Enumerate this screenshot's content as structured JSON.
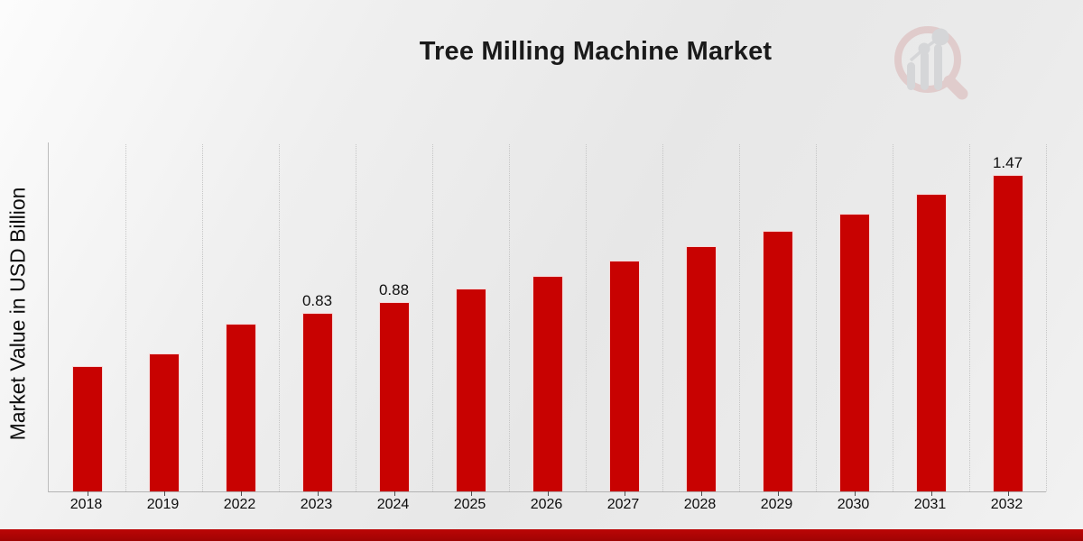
{
  "chart_data": {
    "type": "bar",
    "title": "Tree Milling Machine Market",
    "ylabel": "Market Value in USD Billion",
    "xlabel": "",
    "categories": [
      "2018",
      "2019",
      "2022",
      "2023",
      "2024",
      "2025",
      "2026",
      "2027",
      "2028",
      "2029",
      "2030",
      "2031",
      "2032"
    ],
    "values": [
      0.58,
      0.64,
      0.78,
      0.83,
      0.88,
      0.94,
      1.0,
      1.07,
      1.14,
      1.21,
      1.29,
      1.38,
      1.47
    ],
    "bar_labels": [
      "",
      "",
      "",
      "0.83",
      "0.88",
      "",
      "",
      "",
      "",
      "",
      "",
      "",
      "1.47"
    ],
    "unit": "USD Billion",
    "ylim": [
      0,
      1.62
    ],
    "grid": "vertical-dotted",
    "legend": "none"
  },
  "colors": {
    "bar": "#C80201",
    "footer_accent": "#AB0404",
    "gridline": "#C6C6C6",
    "axis": "#B3B3B3",
    "text": "#111111",
    "logo_pink": "#D8AFAF",
    "logo_gray": "#C2C3C7"
  },
  "branding": {
    "logo_icon": "magnifying-glass-bar-chart-icon"
  }
}
